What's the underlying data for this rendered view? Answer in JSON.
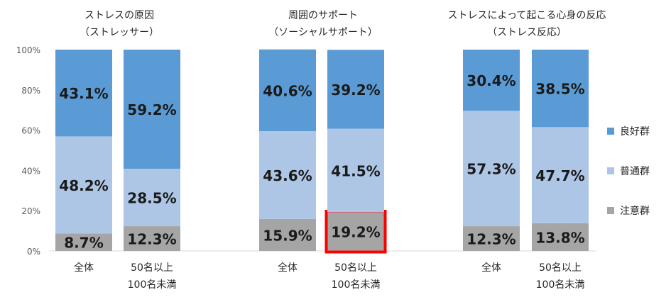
{
  "chart_data": {
    "type": "bar",
    "stacked": true,
    "normalized_percent": true,
    "ylim": [
      0,
      100
    ],
    "yticks": [
      "0%",
      "20%",
      "40%",
      "60%",
      "80%",
      "100%"
    ],
    "grid": false,
    "legend_position": "right",
    "series": [
      {
        "name": "注意群",
        "color": "#a5a5a5"
      },
      {
        "name": "普通群",
        "color": "#aec6e6"
      },
      {
        "name": "良好群",
        "color": "#5b9bd5"
      }
    ],
    "groups": [
      {
        "title_line1": "ストレスの原因",
        "title_line2": "（ストレッサー）",
        "bars": [
          {
            "label_line1": "全体",
            "label_line2": "",
            "values": [
              8.7,
              48.2,
              43.1
            ],
            "labels": [
              "8.7%",
              "48.2%",
              "43.1%"
            ]
          },
          {
            "label_line1": "50名以上",
            "label_line2": "100名未満",
            "values": [
              12.3,
              28.5,
              59.2
            ],
            "labels": [
              "12.3%",
              "28.5%",
              "59.2%"
            ]
          }
        ]
      },
      {
        "title_line1": "周囲のサポート",
        "title_line2": "（ソーシャルサポート）",
        "bars": [
          {
            "label_line1": "全体",
            "label_line2": "",
            "values": [
              15.9,
              43.6,
              40.6
            ],
            "labels": [
              "15.9%",
              "43.6%",
              "40.6%"
            ]
          },
          {
            "label_line1": "50名以上",
            "label_line2": "100名未満",
            "values": [
              19.2,
              41.5,
              39.2
            ],
            "labels": [
              "19.2%",
              "41.5%",
              "39.2%"
            ],
            "highlight_segment": 0,
            "highlight_color": "#ff0000"
          }
        ]
      },
      {
        "title_line1": "ストレスによって起こる心身の反応",
        "title_line2": "（ストレス反応）",
        "bars": [
          {
            "label_line1": "全体",
            "label_line2": "",
            "values": [
              12.3,
              57.3,
              30.4
            ],
            "labels": [
              "12.3%",
              "57.3%",
              "30.4%"
            ]
          },
          {
            "label_line1": "50名以上",
            "label_line2": "100名未満",
            "values": [
              13.8,
              47.7,
              38.5
            ],
            "labels": [
              "13.8%",
              "47.7%",
              "38.5%"
            ]
          }
        ]
      }
    ]
  }
}
